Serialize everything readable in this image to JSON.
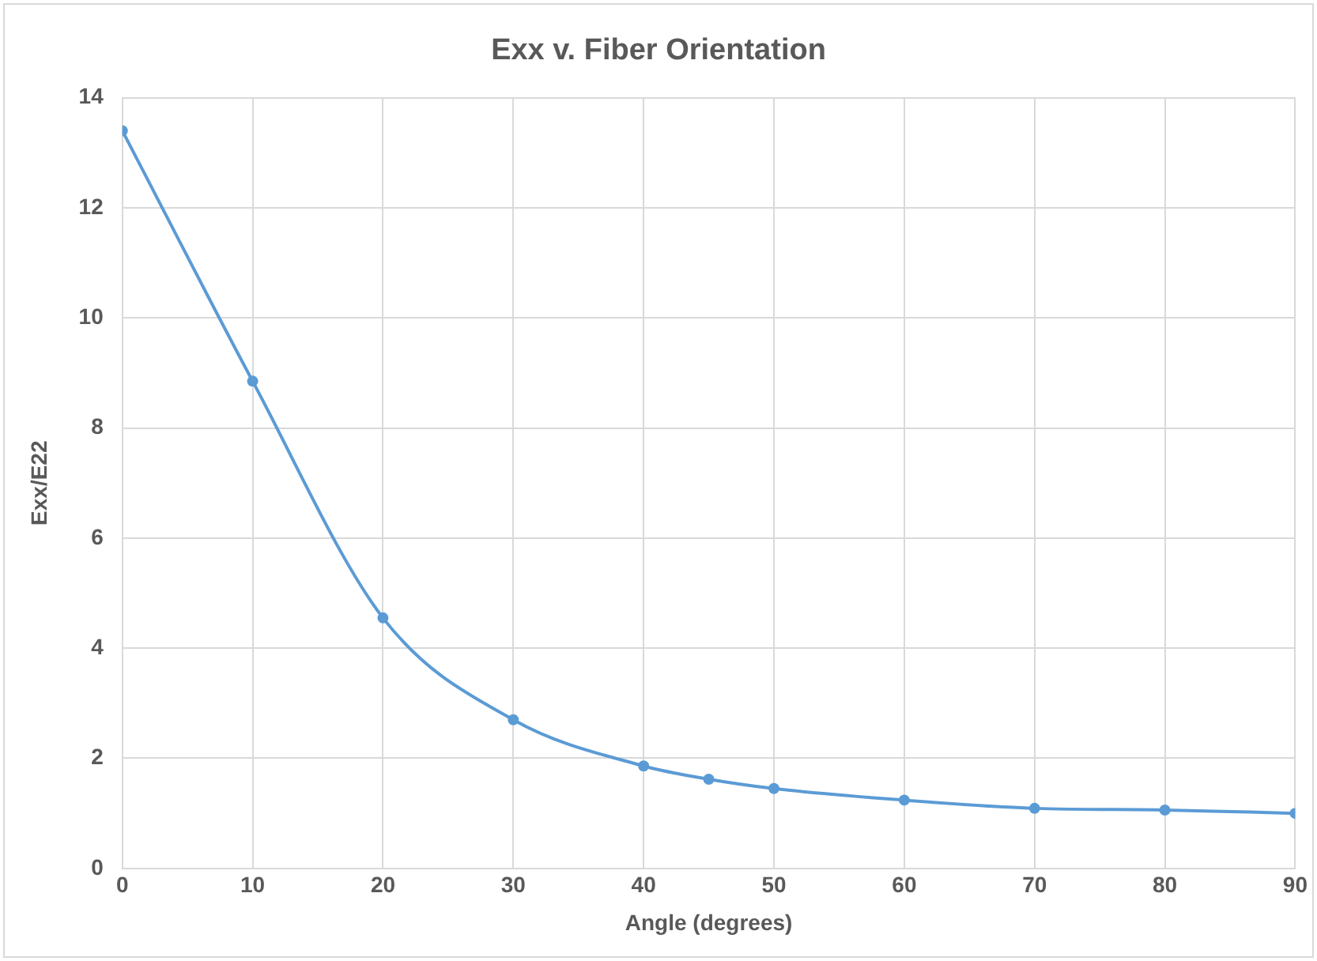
{
  "chart_data": {
    "type": "line",
    "title": "Exx v. Fiber Orientation",
    "xlabel": "Angle (degrees)",
    "ylabel": "Exx/E22",
    "x": [
      0,
      10,
      20,
      30,
      40,
      45,
      50,
      60,
      70,
      80,
      90
    ],
    "series": [
      {
        "color": "#5b9bd5",
        "values": [
          13.4,
          8.85,
          4.55,
          2.7,
          1.86,
          1.62,
          1.45,
          1.24,
          1.09,
          1.06,
          1.0
        ]
      }
    ],
    "xlim": [
      0,
      90
    ],
    "xticks": [
      0,
      10,
      20,
      30,
      40,
      50,
      60,
      70,
      80,
      90
    ],
    "ylim": [
      0,
      14
    ],
    "yticks": [
      0,
      2,
      4,
      6,
      8,
      10,
      12,
      14
    ],
    "grid": true,
    "marker": "circle",
    "line_style": "solid"
  }
}
